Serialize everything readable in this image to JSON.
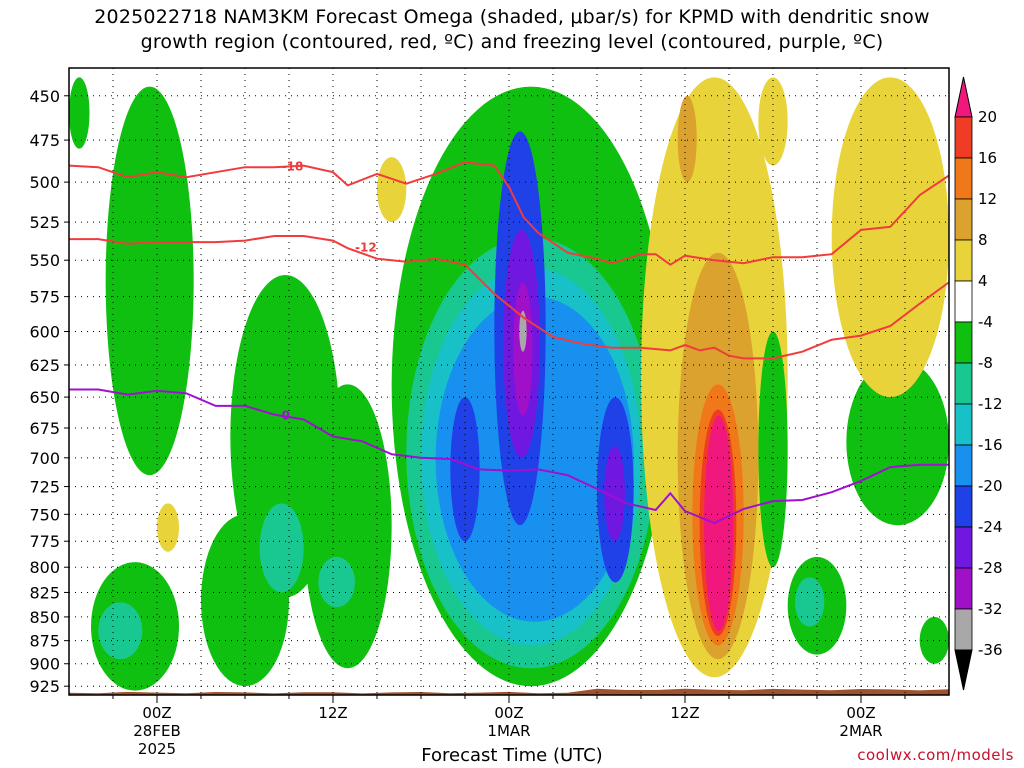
{
  "title": {
    "line1": "2025022718 NAM3KM Forecast Omega (shaded, μbar/s) for KPMD with dendritic snow",
    "line2": "growth region (contoured, red, ºC) and freezing level (contoured, purple, ºC)"
  },
  "credit": "coolwx.com/models",
  "chart_data": {
    "type": "heatmap",
    "title": "2025022718 NAM3KM Forecast Omega (shaded, μbar/s) for KPMD with dendritic snow growth region (contoured, red, ºC) and freezing level (contoured, purple, ºC)",
    "xlabel": "Forecast Time (UTC)",
    "ylabel": "",
    "x_range_hours": [
      -6,
      54
    ],
    "x_ticks": [
      {
        "hour": 0,
        "lines": [
          "00Z",
          "28FEB",
          "2025"
        ]
      },
      {
        "hour": 12,
        "lines": [
          "12Z"
        ]
      },
      {
        "hour": 24,
        "lines": [
          "00Z",
          "1MAR"
        ]
      },
      {
        "hour": 36,
        "lines": [
          "12Z"
        ]
      },
      {
        "hour": 48,
        "lines": [
          "00Z",
          "2MAR"
        ]
      }
    ],
    "y_axis": {
      "unit": "mb",
      "scale": "log-pressure",
      "range": [
        935,
        435
      ],
      "ticks": [
        450,
        475,
        500,
        525,
        550,
        575,
        600,
        625,
        650,
        675,
        700,
        725,
        750,
        775,
        800,
        825,
        850,
        875,
        900,
        925
      ]
    },
    "grid": true,
    "colorbar": {
      "labels": [
        "20",
        "16",
        "12",
        "8",
        "4",
        "-4",
        "-8",
        "-12",
        "-16",
        "-20",
        "-24",
        "-28",
        "-32",
        "-36"
      ],
      "bins": [
        {
          "from": 20,
          "to": 24,
          "color": "#f0187c"
        },
        {
          "from": 16,
          "to": 20,
          "color": "#f03c24"
        },
        {
          "from": 12,
          "to": 16,
          "color": "#f07818"
        },
        {
          "from": 8,
          "to": 12,
          "color": "#dca22e"
        },
        {
          "from": 4,
          "to": 8,
          "color": "#e8d43a"
        },
        {
          "from": -4,
          "to": 4,
          "color": "#ffffff"
        },
        {
          "from": -8,
          "to": -4,
          "color": "#10c010"
        },
        {
          "from": -12,
          "to": -8,
          "color": "#18c890"
        },
        {
          "from": -16,
          "to": -12,
          "color": "#18c0c8"
        },
        {
          "from": -20,
          "to": -16,
          "color": "#1890f0"
        },
        {
          "from": -24,
          "to": -20,
          "color": "#2040e8"
        },
        {
          "from": -28,
          "to": -24,
          "color": "#7018e0"
        },
        {
          "from": -32,
          "to": -28,
          "color": "#a010c8"
        },
        {
          "from": -36,
          "to": -32,
          "color": "#a8a8a8"
        },
        {
          "from": -40,
          "to": -36,
          "color": "#000000"
        }
      ]
    },
    "omega_regions": [
      {
        "value": -6,
        "hours": [
          -4.5,
          1.5
        ],
        "levels": [
          930,
          795
        ]
      },
      {
        "value": -10,
        "hours": [
          -4,
          -1
        ],
        "levels": [
          895,
          835
        ]
      },
      {
        "value": -6,
        "hours": [
          -3.5,
          2.5
        ],
        "levels": [
          715,
          445
        ]
      },
      {
        "value": -6,
        "hours": [
          -6,
          -4.6
        ],
        "levels": [
          480,
          440
        ]
      },
      {
        "value": 5,
        "hours": [
          0,
          1.5
        ],
        "levels": [
          785,
          740
        ]
      },
      {
        "value": -6,
        "hours": [
          3,
          9
        ],
        "levels": [
          925,
          750
        ]
      },
      {
        "value": -6,
        "hours": [
          5,
          12.5
        ],
        "levels": [
          830,
          560
        ]
      },
      {
        "value": -10,
        "hours": [
          7,
          10
        ],
        "levels": [
          825,
          740
        ]
      },
      {
        "value": -6,
        "hours": [
          10,
          16
        ],
        "levels": [
          905,
          640
        ]
      },
      {
        "value": -10,
        "hours": [
          11,
          13.5
        ],
        "levels": [
          840,
          790
        ]
      },
      {
        "value": 5,
        "hours": [
          15,
          17
        ],
        "levels": [
          525,
          485
        ]
      },
      {
        "value": -6,
        "hours": [
          16,
          35
        ],
        "levels": [
          925,
          445
        ]
      },
      {
        "value": -10,
        "hours": [
          17,
          34
        ],
        "levels": [
          905,
          535
        ]
      },
      {
        "value": -14,
        "hours": [
          18,
          33
        ],
        "levels": [
          880,
          555
        ]
      },
      {
        "value": -18,
        "hours": [
          19,
          32.5
        ],
        "levels": [
          855,
          575
        ]
      },
      {
        "value": -22,
        "hours": [
          20,
          22
        ],
        "levels": [
          775,
          650
        ]
      },
      {
        "value": -22,
        "hours": [
          23,
          26.5
        ],
        "levels": [
          760,
          470
        ]
      },
      {
        "value": -26,
        "hours": [
          23.6,
          26.1
        ],
        "levels": [
          700,
          530
        ]
      },
      {
        "value": -30,
        "hours": [
          24.3,
          25.6
        ],
        "levels": [
          665,
          565
        ]
      },
      {
        "value": -34,
        "hours": [
          24.7,
          25.2
        ],
        "levels": [
          615,
          585
        ]
      },
      {
        "value": -22,
        "hours": [
          30,
          32.5
        ],
        "levels": [
          815,
          650
        ]
      },
      {
        "value": -26,
        "hours": [
          30.5,
          31.9
        ],
        "levels": [
          775,
          690
        ]
      },
      {
        "value": 5,
        "hours": [
          33,
          43
        ],
        "levels": [
          915,
          440
        ]
      },
      {
        "value": 9,
        "hours": [
          35.5,
          41
        ],
        "levels": [
          895,
          545
        ]
      },
      {
        "value": 13,
        "hours": [
          36.5,
          40
        ],
        "levels": [
          880,
          640
        ]
      },
      {
        "value": 17,
        "hours": [
          37,
          39.5
        ],
        "levels": [
          870,
          660
        ]
      },
      {
        "value": 22,
        "hours": [
          37.3,
          39.3
        ],
        "levels": [
          865,
          665
        ]
      },
      {
        "value": 9,
        "hours": [
          35.5,
          36.8
        ],
        "levels": [
          500,
          450
        ]
      },
      {
        "value": -6,
        "hours": [
          41,
          43
        ],
        "levels": [
          800,
          600
        ]
      },
      {
        "value": -6,
        "hours": [
          43,
          47
        ],
        "levels": [
          890,
          790
        ]
      },
      {
        "value": -10,
        "hours": [
          43.5,
          45.5
        ],
        "levels": [
          860,
          810
        ]
      },
      {
        "value": -6,
        "hours": [
          47,
          54
        ],
        "levels": [
          760,
          620
        ]
      },
      {
        "value": -6,
        "hours": [
          52,
          54
        ],
        "levels": [
          900,
          850
        ]
      },
      {
        "value": 5,
        "hours": [
          46,
          54
        ],
        "levels": [
          650,
          440
        ]
      },
      {
        "value": 5,
        "hours": [
          41,
          43
        ],
        "levels": [
          490,
          440
        ]
      }
    ],
    "series": [
      {
        "color": "#f03c3c",
        "label": "-18",
        "label_at": [
          8.5,
          490
        ],
        "points": [
          [
            -6,
            490
          ],
          [
            -4,
            491
          ],
          [
            -2,
            497
          ],
          [
            0,
            494
          ],
          [
            2,
            497
          ],
          [
            4,
            494
          ],
          [
            6,
            491
          ],
          [
            8,
            491
          ],
          [
            10,
            490
          ],
          [
            12,
            494
          ],
          [
            13,
            502
          ],
          [
            15,
            495
          ],
          [
            17,
            501
          ],
          [
            19,
            495
          ],
          [
            21,
            488
          ],
          [
            23,
            490
          ],
          [
            24,
            503
          ],
          [
            25,
            522
          ],
          [
            26,
            532
          ],
          [
            28,
            545
          ],
          [
            30,
            549
          ],
          [
            31,
            552
          ],
          [
            33,
            546
          ],
          [
            34,
            546
          ],
          [
            35,
            553
          ],
          [
            36,
            547
          ],
          [
            38,
            550
          ],
          [
            40,
            552
          ],
          [
            42,
            548
          ],
          [
            44,
            548
          ],
          [
            46,
            546
          ],
          [
            48,
            530
          ],
          [
            50,
            528
          ],
          [
            52,
            508
          ],
          [
            54,
            496
          ]
        ]
      },
      {
        "color": "#f03c3c",
        "label": "-12",
        "label_at": [
          13.5,
          541
        ],
        "points": [
          [
            -6,
            536
          ],
          [
            -4,
            536
          ],
          [
            -2,
            539
          ],
          [
            0,
            538
          ],
          [
            2,
            538
          ],
          [
            4,
            538
          ],
          [
            6,
            537
          ],
          [
            8,
            534
          ],
          [
            10,
            534
          ],
          [
            12,
            537
          ],
          [
            13,
            542
          ],
          [
            15,
            549
          ],
          [
            17,
            551
          ],
          [
            19,
            549
          ],
          [
            21,
            553
          ],
          [
            23,
            573
          ],
          [
            25,
            590
          ],
          [
            27,
            604
          ],
          [
            29,
            609
          ],
          [
            31,
            612
          ],
          [
            33,
            612
          ],
          [
            35,
            614
          ],
          [
            36,
            610
          ],
          [
            37,
            614
          ],
          [
            38,
            612
          ],
          [
            39,
            618
          ],
          [
            40,
            620
          ],
          [
            42,
            620
          ],
          [
            44,
            615
          ],
          [
            46,
            606
          ],
          [
            48,
            603
          ],
          [
            50,
            596
          ],
          [
            52,
            580
          ],
          [
            54,
            565
          ]
        ]
      },
      {
        "color": "#a010d0",
        "label": "0",
        "label_at": [
          8.5,
          664
        ],
        "points": [
          [
            -6,
            644
          ],
          [
            -4,
            644
          ],
          [
            -2,
            648
          ],
          [
            0,
            645
          ],
          [
            2,
            647
          ],
          [
            4,
            657
          ],
          [
            6,
            657
          ],
          [
            8,
            664
          ],
          [
            10,
            668
          ],
          [
            12,
            682
          ],
          [
            14,
            686
          ],
          [
            16,
            697
          ],
          [
            18,
            700
          ],
          [
            20,
            701
          ],
          [
            22,
            710
          ],
          [
            24,
            711
          ],
          [
            26,
            710
          ],
          [
            28,
            715
          ],
          [
            30,
            727
          ],
          [
            32,
            740
          ],
          [
            34,
            746
          ],
          [
            35,
            731
          ],
          [
            36,
            747
          ],
          [
            38,
            758
          ],
          [
            40,
            745
          ],
          [
            42,
            738
          ],
          [
            44,
            737
          ],
          [
            46,
            730
          ],
          [
            48,
            720
          ],
          [
            50,
            708
          ],
          [
            52,
            706
          ],
          [
            54,
            706
          ]
        ]
      }
    ],
    "terrain": {
      "surface_level_mb": 930,
      "color": "#a0522d"
    }
  }
}
